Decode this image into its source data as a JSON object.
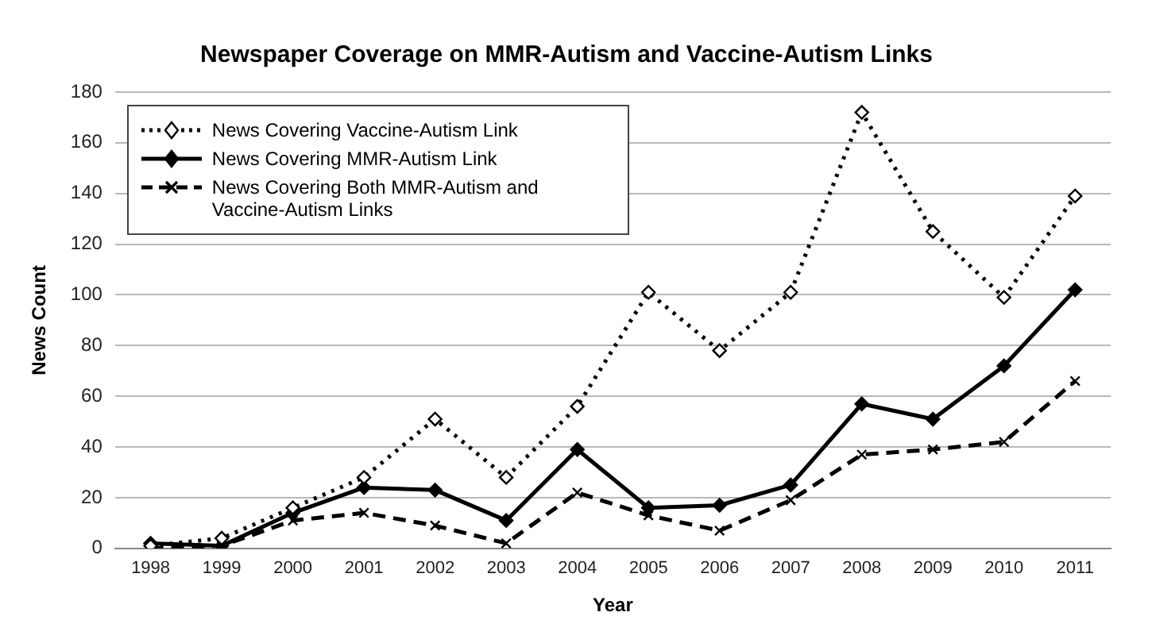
{
  "chart_data": {
    "type": "line",
    "title": "Newspaper Coverage on MMR-Autism and Vaccine-Autism Links",
    "xlabel": "Year",
    "ylabel": "News Count",
    "categories": [
      "1998",
      "1999",
      "2000",
      "2001",
      "2002",
      "2003",
      "2004",
      "2005",
      "2006",
      "2007",
      "2008",
      "2009",
      "2010",
      "2011"
    ],
    "series": [
      {
        "name": "News Covering Vaccine-Autism Link",
        "color": "#000000",
        "marker": "diamond",
        "line_style": "dotted",
        "values": [
          1,
          4,
          16,
          28,
          51,
          28,
          56,
          101,
          78,
          101,
          172,
          125,
          99,
          139
        ]
      },
      {
        "name": "News Covering MMR-Autism Link",
        "color": "#000000",
        "marker": "diamond",
        "line_style": "solid",
        "values": [
          2,
          1,
          14,
          24,
          23,
          11,
          39,
          16,
          17,
          25,
          57,
          51,
          72,
          102
        ]
      },
      {
        "name": "News Covering Both MMR-Autism and Vaccine-Autism Links",
        "color": "#000000",
        "marker": "cross",
        "line_style": "dashed",
        "values": [
          0,
          1,
          11,
          14,
          9,
          2,
          22,
          13,
          7,
          19,
          37,
          39,
          42,
          66
        ]
      }
    ],
    "ylim": [
      0,
      180
    ],
    "yticks": [
      0,
      20,
      40,
      60,
      80,
      100,
      120,
      140,
      160,
      180
    ],
    "grid": "y",
    "legend": "top left"
  }
}
